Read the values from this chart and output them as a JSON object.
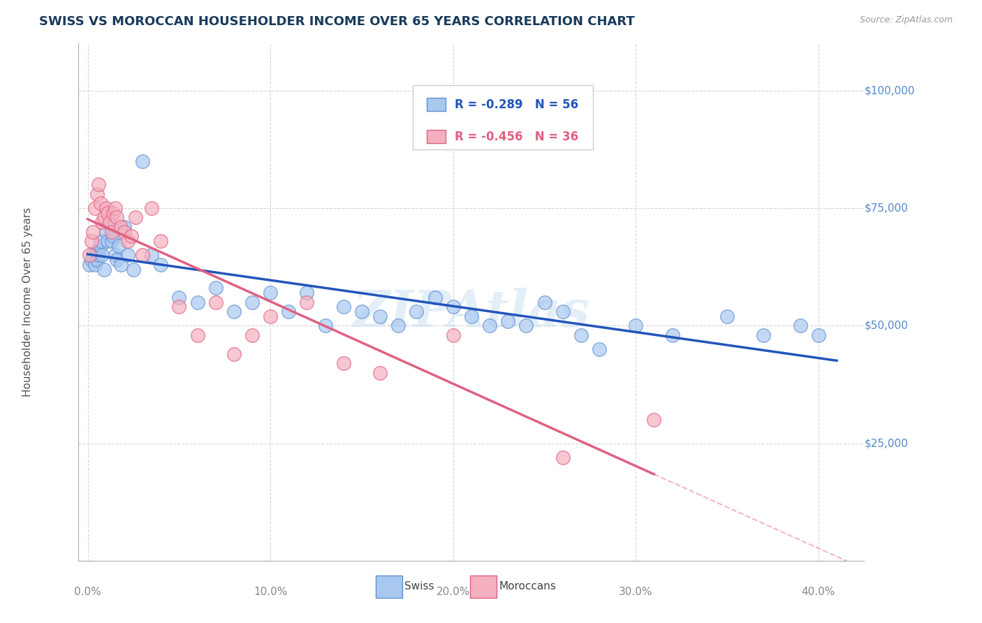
{
  "title": "SWISS VS MOROCCAN HOUSEHOLDER INCOME OVER 65 YEARS CORRELATION CHART",
  "source": "Source: ZipAtlas.com",
  "xlabel_ticks": [
    "0.0%",
    "10.0%",
    "20.0%",
    "30.0%",
    "40.0%"
  ],
  "xlabel_tick_vals": [
    0.0,
    0.1,
    0.2,
    0.3,
    0.4
  ],
  "ylabel": "Householder Income Over 65 years",
  "ylabel_ticks": [
    "$25,000",
    "$50,000",
    "$75,000",
    "$100,000"
  ],
  "ylabel_tick_vals": [
    25000,
    50000,
    75000,
    100000
  ],
  "xlim": [
    -0.005,
    0.425
  ],
  "ylim": [
    0,
    110000
  ],
  "background_color": "#ffffff",
  "grid_color": "#cccccc",
  "title_color": "#1a3a5c",
  "swiss_color": "#a8c8f0",
  "moroccan_color": "#f5b0c0",
  "swiss_edge_color": "#6090d0",
  "moroccan_edge_color": "#e06080",
  "swiss_line_color": "#2255bb",
  "moroccan_line_color": "#e06080",
  "right_label_color": "#5588cc",
  "legend_swiss_label": "R = -0.289   N = 56",
  "legend_moroccan_label": "R = -0.456   N = 36",
  "swiss_x": [
    0.001,
    0.002,
    0.003,
    0.004,
    0.005,
    0.005,
    0.006,
    0.007,
    0.007,
    0.008,
    0.009,
    0.01,
    0.011,
    0.012,
    0.013,
    0.014,
    0.015,
    0.016,
    0.017,
    0.018,
    0.02,
    0.022,
    0.025,
    0.03,
    0.035,
    0.04,
    0.05,
    0.06,
    0.07,
    0.08,
    0.09,
    0.1,
    0.11,
    0.12,
    0.13,
    0.14,
    0.15,
    0.16,
    0.17,
    0.18,
    0.19,
    0.2,
    0.21,
    0.22,
    0.23,
    0.24,
    0.25,
    0.26,
    0.27,
    0.28,
    0.3,
    0.32,
    0.35,
    0.37,
    0.39,
    0.4
  ],
  "swiss_y": [
    63000,
    64000,
    65000,
    63000,
    66000,
    64000,
    65000,
    67000,
    68000,
    65000,
    62000,
    70000,
    68000,
    72000,
    68000,
    69000,
    65000,
    64000,
    67000,
    63000,
    71000,
    65000,
    62000,
    85000,
    65000,
    63000,
    56000,
    55000,
    58000,
    53000,
    55000,
    57000,
    53000,
    57000,
    50000,
    54000,
    53000,
    52000,
    50000,
    53000,
    56000,
    54000,
    52000,
    50000,
    51000,
    50000,
    55000,
    53000,
    48000,
    45000,
    50000,
    48000,
    52000,
    48000,
    50000,
    48000
  ],
  "moroccan_x": [
    0.001,
    0.002,
    0.003,
    0.004,
    0.005,
    0.006,
    0.007,
    0.008,
    0.009,
    0.01,
    0.011,
    0.012,
    0.013,
    0.014,
    0.015,
    0.016,
    0.018,
    0.02,
    0.022,
    0.024,
    0.026,
    0.03,
    0.035,
    0.04,
    0.05,
    0.06,
    0.07,
    0.08,
    0.09,
    0.1,
    0.12,
    0.14,
    0.16,
    0.2,
    0.26,
    0.31
  ],
  "moroccan_y": [
    65000,
    68000,
    70000,
    75000,
    78000,
    80000,
    76000,
    72000,
    73000,
    75000,
    74000,
    72000,
    70000,
    74000,
    75000,
    73000,
    71000,
    70000,
    68000,
    69000,
    73000,
    65000,
    75000,
    68000,
    54000,
    48000,
    55000,
    44000,
    48000,
    52000,
    55000,
    42000,
    40000,
    48000,
    22000,
    30000
  ],
  "watermark_text": "ZIPAtlas",
  "watermark_color": "#c8dff0",
  "watermark_alpha": 0.5
}
